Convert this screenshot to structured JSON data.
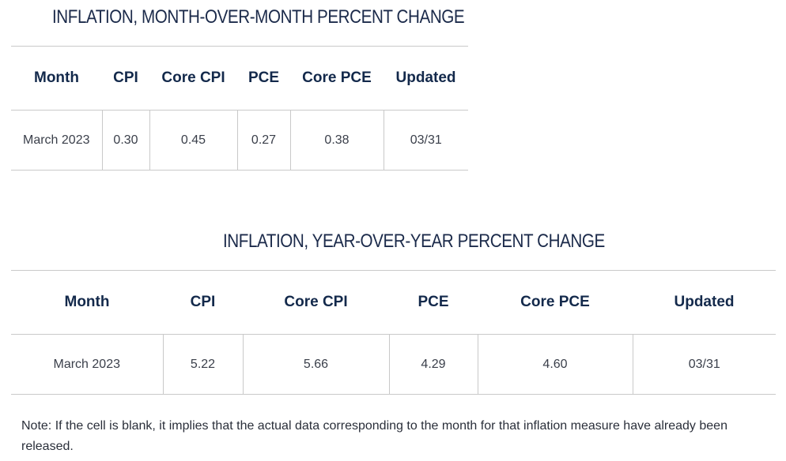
{
  "mom": {
    "title": "INFLATION, MONTH-OVER-MONTH PERCENT CHANGE",
    "headers": [
      "Month",
      "CPI",
      "Core CPI",
      "PCE",
      "Core PCE",
      "Updated"
    ],
    "row": [
      "March 2023",
      "0.30",
      "0.45",
      "0.27",
      "0.38",
      "03/31"
    ]
  },
  "yoy": {
    "title": "INFLATION, YEAR-OVER-YEAR PERCENT CHANGE",
    "headers": [
      "Month",
      "CPI",
      "Core CPI",
      "PCE",
      "Core PCE",
      "Updated"
    ],
    "row": [
      "March 2023",
      "5.22",
      "5.66",
      "4.29",
      "4.60",
      "03/31"
    ]
  },
  "note": "Note: If the cell is blank, it implies that the actual data corresponding to the month for that inflation measure have already been released.",
  "colors": {
    "heading": "#13294b",
    "rule": "#c9c9c9",
    "text": "#3a3f4a"
  }
}
